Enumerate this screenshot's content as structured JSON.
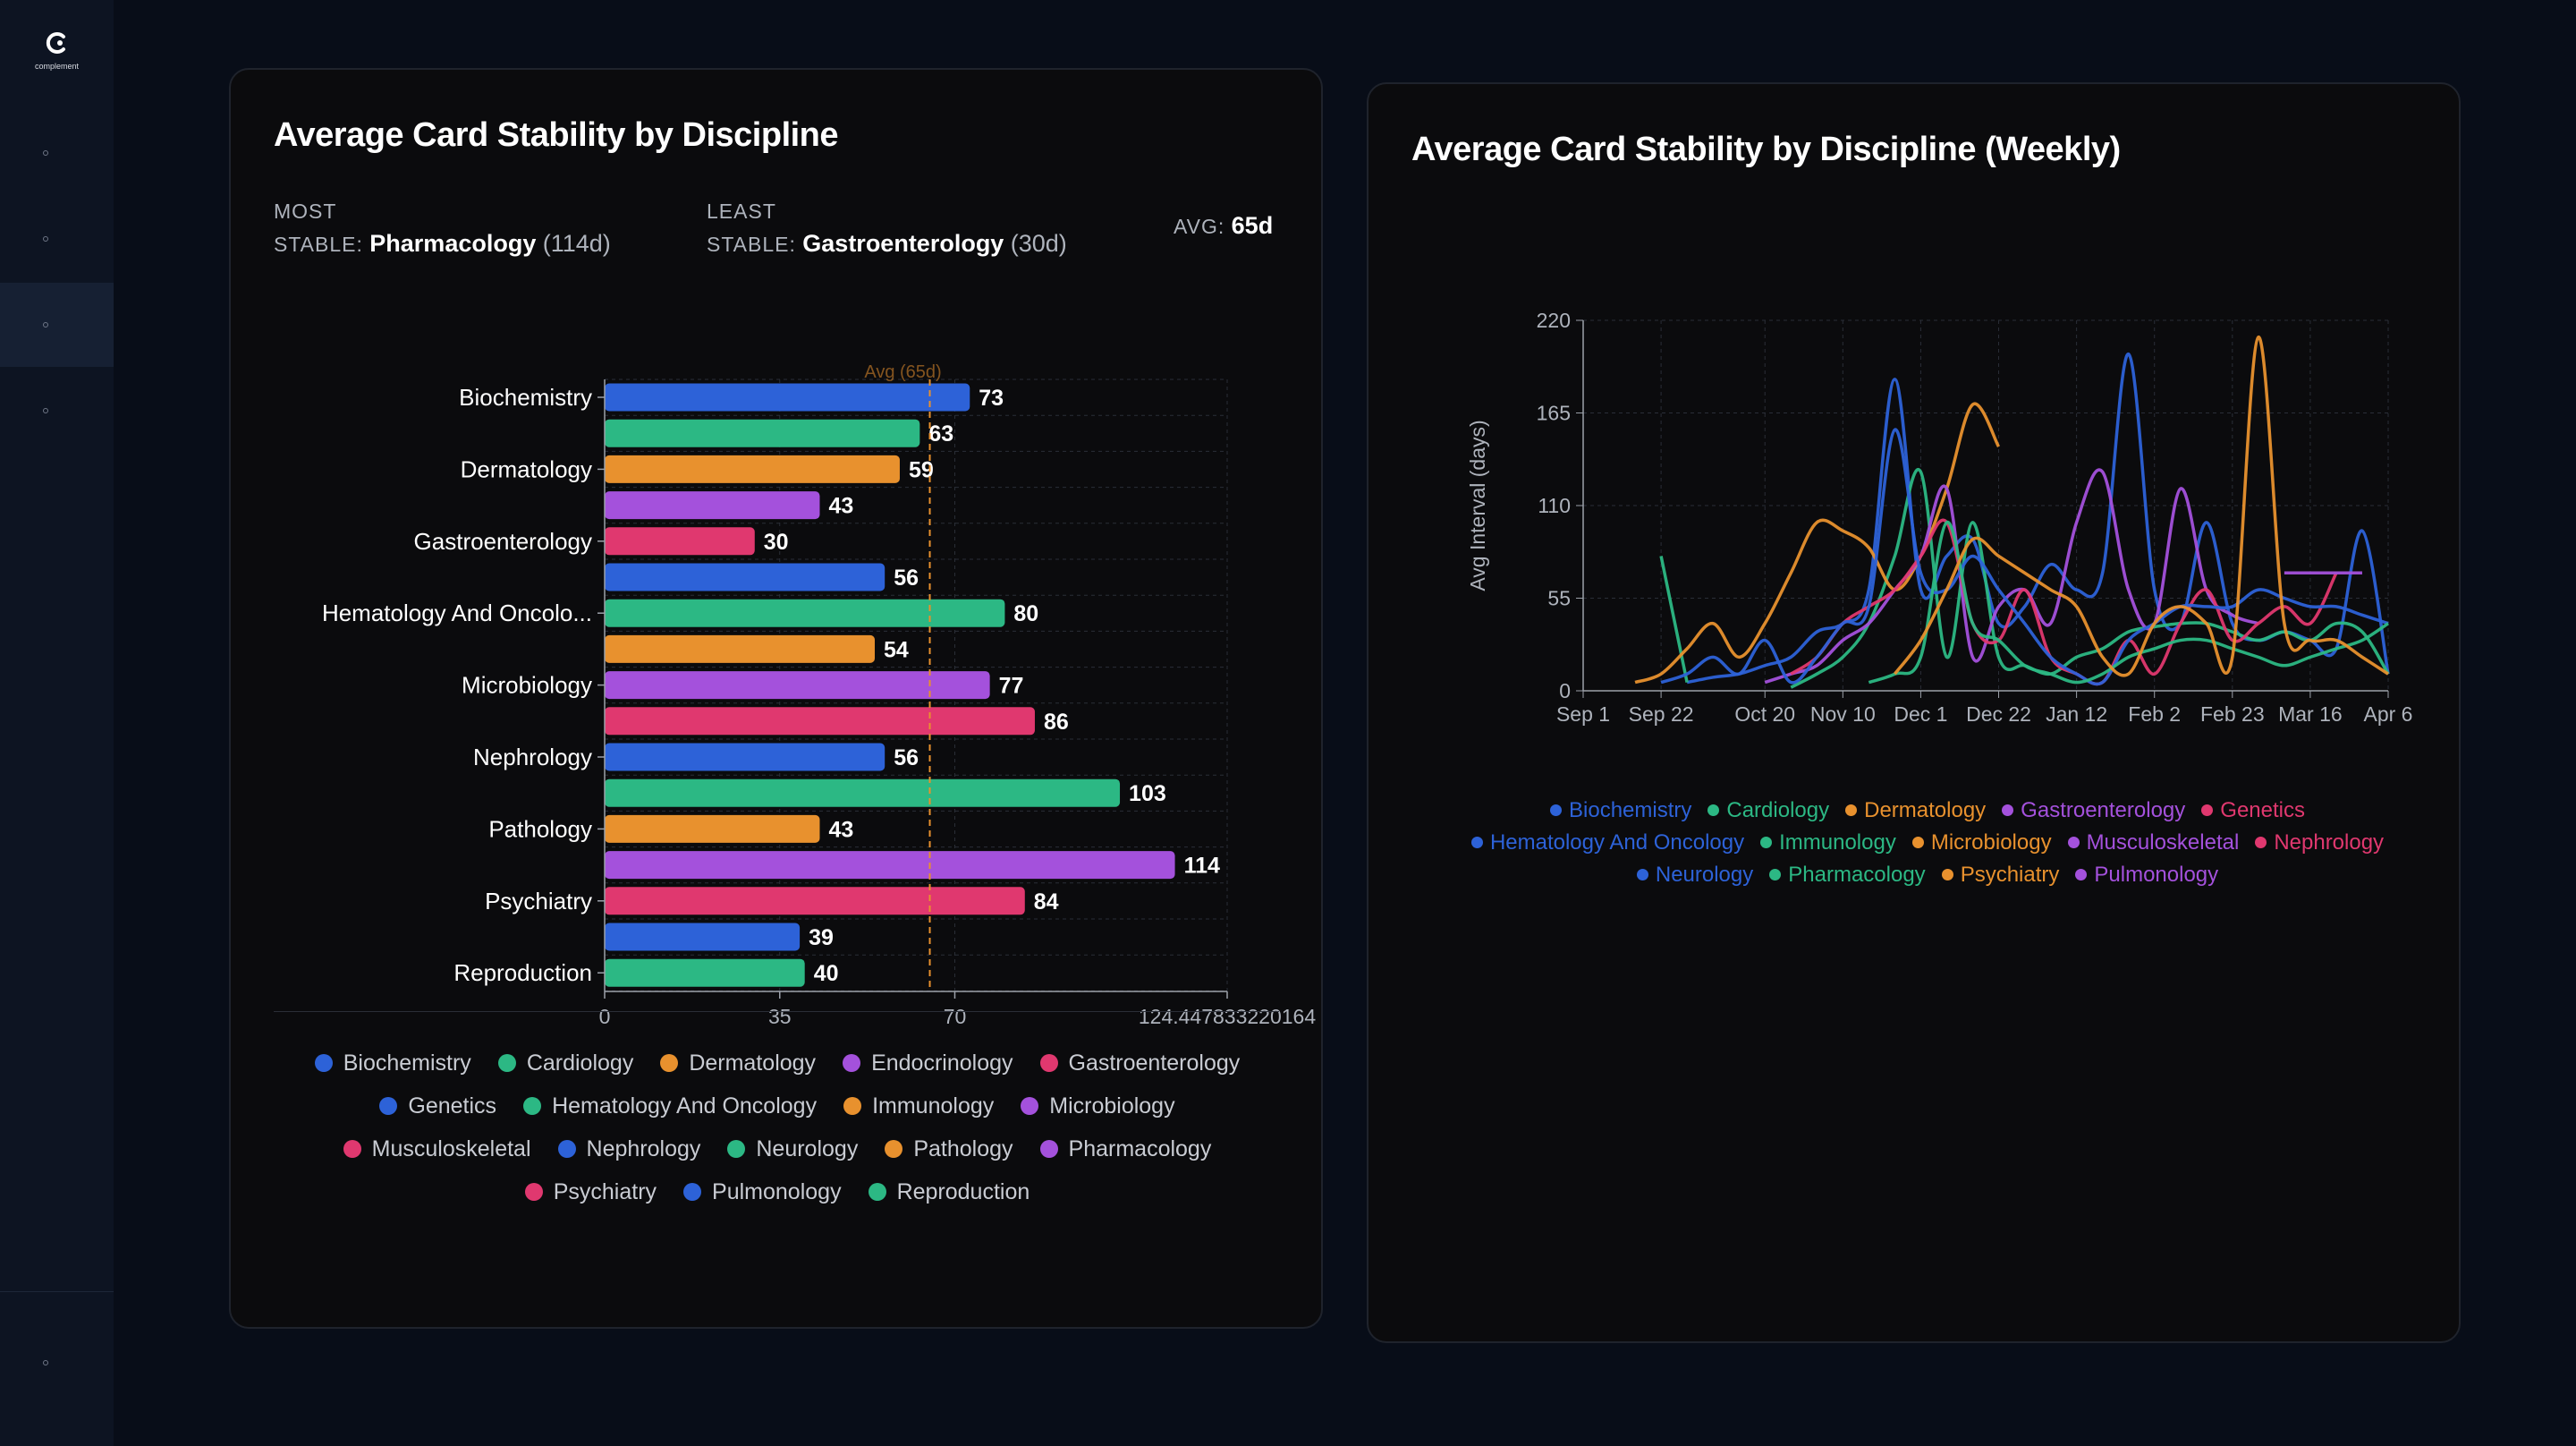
{
  "app": {
    "logo_text": "complement",
    "nav": [
      "nav-1",
      "nav-2",
      "nav-3",
      "nav-4"
    ],
    "footer_nav": "nav-settings"
  },
  "colors": {
    "blue": "#2d62d8",
    "green": "#2cb884",
    "orange": "#e8912e",
    "purple": "#a451dc",
    "pink": "#e0386f"
  },
  "panel1": {
    "title": "Average Card Stability by Discipline",
    "most": {
      "label1": "MOST",
      "label2": "STABLE:",
      "name": "Pharmacology",
      "value": "(114d)"
    },
    "least": {
      "label1": "LEAST",
      "label2": "STABLE:",
      "name": "Gastroenterology",
      "value": "(30d)"
    },
    "avg": {
      "label": "AVG:",
      "value": "65d"
    },
    "avg_marker_label": "Avg (65d)"
  },
  "panel2": {
    "title": "Average Card Stability by Discipline (Weekly)"
  },
  "chart_data": [
    {
      "type": "bar",
      "orientation": "horizontal",
      "title": "Average Card Stability by Discipline",
      "categories": [
        "Biochemistry",
        "Cardiology",
        "Dermatology",
        "Endocrinology",
        "Gastroenterology",
        "Genetics",
        "Hematology And Oncology",
        "Immunology",
        "Microbiology",
        "Musculoskeletal",
        "Nephrology",
        "Neurology",
        "Pathology",
        "Pharmacology",
        "Psychiatry",
        "Pulmonology",
        "Reproduction"
      ],
      "visible_tick_labels": [
        "Biochemistry",
        "Dermatology",
        "Gastroenterology",
        "Hematology And Oncolo...",
        "Microbiology",
        "Nephrology",
        "Pathology",
        "Psychiatry",
        "Reproduction"
      ],
      "values": [
        73,
        63,
        59,
        43,
        30,
        56,
        80,
        54,
        77,
        86,
        56,
        103,
        43,
        114,
        84,
        39,
        40
      ],
      "colors": [
        "blue",
        "green",
        "orange",
        "purple",
        "pink",
        "blue",
        "green",
        "orange",
        "purple",
        "pink",
        "blue",
        "green",
        "orange",
        "purple",
        "pink",
        "blue",
        "green"
      ],
      "reference_line": 65,
      "xlim": [
        0,
        124.447833220164
      ],
      "xticks": [
        "0",
        "35",
        "70",
        "124.447833220164"
      ],
      "legend": [
        "Biochemistry",
        "Cardiology",
        "Dermatology",
        "Endocrinology",
        "Gastroenterology",
        "Genetics",
        "Hematology And Oncology",
        "Immunology",
        "Microbiology",
        "Musculoskeletal",
        "Nephrology",
        "Neurology",
        "Pathology",
        "Pharmacology",
        "Psychiatry",
        "Pulmonology",
        "Reproduction"
      ]
    },
    {
      "type": "line",
      "title": "Average Card Stability by Discipline (Weekly)",
      "ylabel": "Avg Interval (days)",
      "ylim": [
        0,
        220
      ],
      "yticks": [
        "0",
        "55",
        "110",
        "165",
        "220"
      ],
      "x": [
        0,
        1,
        2,
        3,
        4,
        5,
        6,
        7,
        8,
        9,
        10,
        11,
        12,
        13,
        14,
        15,
        16,
        17,
        18,
        19,
        20,
        21,
        22,
        23,
        24,
        25,
        26,
        27,
        28,
        29,
        30,
        31
      ],
      "xticks": [
        {
          "x": 0,
          "label": "Sep 1"
        },
        {
          "x": 3,
          "label": "Sep 22"
        },
        {
          "x": 7,
          "label": "Oct 20"
        },
        {
          "x": 10,
          "label": "Nov 10"
        },
        {
          "x": 13,
          "label": "Dec 1"
        },
        {
          "x": 16,
          "label": "Dec 22"
        },
        {
          "x": 19,
          "label": "Jan 12"
        },
        {
          "x": 22,
          "label": "Feb 2"
        },
        {
          "x": 25,
          "label": "Feb 23"
        },
        {
          "x": 28,
          "label": "Mar 16"
        },
        {
          "x": 31,
          "label": "Apr 6"
        }
      ],
      "series": [
        {
          "name": "Biochemistry",
          "color": "blue",
          "values": [
            null,
            null,
            null,
            null,
            5,
            8,
            10,
            15,
            20,
            35,
            40,
            60,
            185,
            60,
            80,
            90,
            40,
            50,
            75,
            60,
            70,
            200,
            60,
            40,
            100,
            40,
            30,
            35,
            30,
            25,
            95,
            10
          ]
        },
        {
          "name": "Cardiology",
          "color": "green",
          "values": [
            0,
            null,
            null,
            80,
            5,
            null,
            null,
            null,
            2,
            10,
            20,
            40,
            80,
            130,
            20,
            100,
            20,
            15,
            10,
            20,
            25,
            35,
            38,
            40,
            40,
            35,
            30,
            35,
            30,
            40,
            35,
            10
          ]
        },
        {
          "name": "Dermatology",
          "color": "orange",
          "values": [
            null,
            null,
            5,
            10,
            25,
            40,
            20,
            40,
            70,
            100,
            95,
            85,
            60,
            80,
            120,
            170,
            145,
            null,
            null,
            null,
            null,
            null,
            null,
            null,
            null,
            null,
            null,
            null,
            null,
            null,
            null,
            null
          ]
        },
        {
          "name": "Gastroenterology",
          "color": "purple",
          "values": [
            null,
            null,
            null,
            null,
            null,
            null,
            null,
            5,
            10,
            15,
            30,
            40,
            60,
            80,
            120,
            20,
            50,
            60,
            40,
            100,
            130,
            60,
            40,
            120,
            60,
            45,
            40,
            null,
            null,
            null,
            null,
            null
          ]
        },
        {
          "name": "Genetics",
          "color": "pink",
          "values": [
            null,
            null,
            null,
            null,
            null,
            null,
            null,
            null,
            10,
            20,
            40,
            50,
            60,
            80,
            100,
            40,
            30,
            60,
            20,
            10,
            5,
            30,
            10,
            40,
            60,
            30,
            40,
            50,
            40,
            70,
            null,
            null
          ]
        },
        {
          "name": "Hematology And Oncology",
          "color": "blue",
          "values": [
            null,
            null,
            null,
            5,
            10,
            20,
            10,
            30,
            5,
            20,
            40,
            50,
            155,
            70,
            60,
            80,
            60,
            40,
            20,
            10,
            5,
            30,
            40,
            50,
            50,
            50,
            60,
            55,
            50,
            50,
            45,
            40
          ]
        },
        {
          "name": "Immunology",
          "color": "green",
          "values": [
            null,
            null,
            null,
            null,
            null,
            null,
            null,
            null,
            null,
            null,
            null,
            5,
            10,
            20,
            100,
            40,
            30,
            15,
            10,
            5,
            10,
            20,
            25,
            30,
            30,
            25,
            20,
            15,
            20,
            25,
            30,
            40
          ]
        },
        {
          "name": "Microbiology",
          "color": "orange",
          "values": [
            null,
            null,
            null,
            null,
            null,
            null,
            null,
            null,
            null,
            null,
            null,
            null,
            10,
            30,
            60,
            90,
            80,
            70,
            60,
            50,
            20,
            10,
            40,
            50,
            40,
            20,
            210,
            40,
            30,
            30,
            20,
            10
          ]
        },
        {
          "name": "Musculoskeletal",
          "color": "purple",
          "values": [
            null,
            null,
            null,
            null,
            null,
            null,
            null,
            null,
            null,
            null,
            null,
            null,
            null,
            null,
            null,
            null,
            null,
            null,
            null,
            null,
            null,
            null,
            null,
            null,
            null,
            null,
            null,
            70,
            70,
            70,
            70,
            null
          ]
        }
      ]
    }
  ],
  "line_legend": [
    "Biochemistry",
    "Cardiology",
    "Dermatology",
    "Gastroenterology",
    "Genetics",
    "Hematology And Oncology",
    "Immunology",
    "Microbiology",
    "Musculoskeletal",
    "Nephrology",
    "Neurology",
    "Pharmacology",
    "Psychiatry",
    "Pulmonology"
  ],
  "line_legend_colors": [
    "blue",
    "green",
    "orange",
    "purple",
    "pink",
    "blue",
    "green",
    "orange",
    "purple",
    "pink",
    "blue",
    "green",
    "orange",
    "purple"
  ]
}
